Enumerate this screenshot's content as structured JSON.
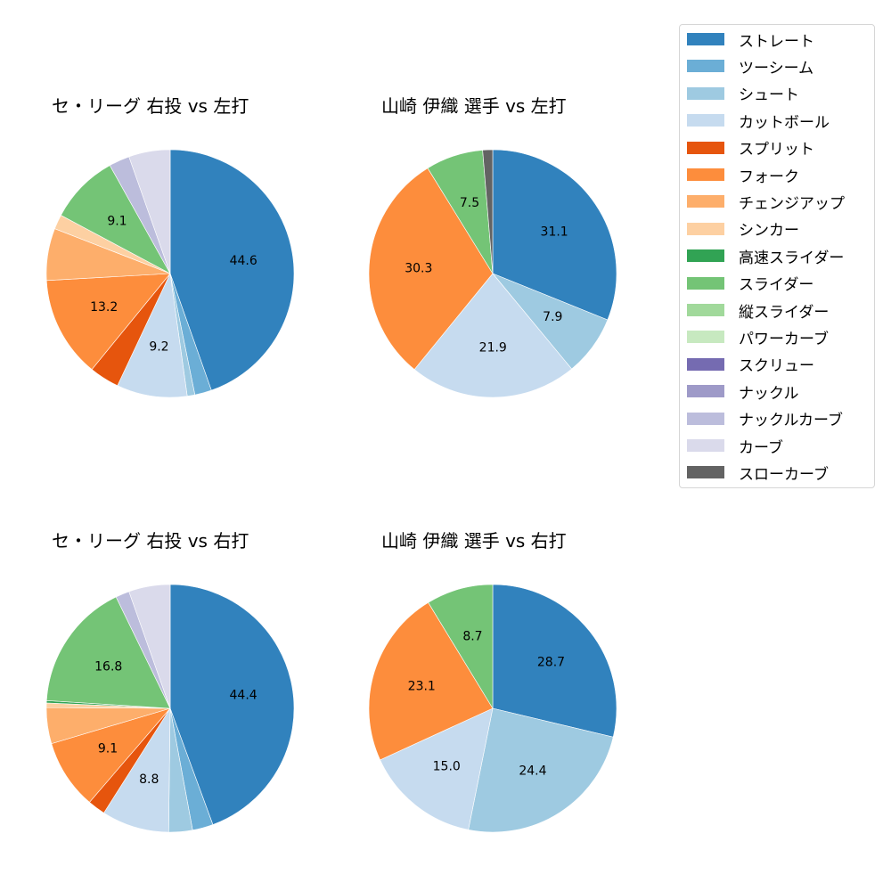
{
  "chart_data": [
    {
      "type": "pie",
      "title": "セ・リーグ 右投 vs 左打",
      "categories": [
        "ストレート",
        "ツーシーム",
        "シュート",
        "カットボール",
        "スプリット",
        "フォーク",
        "チェンジアップ",
        "シンカー",
        "スライダー",
        "ナックルカーブ",
        "カーブ"
      ],
      "values": [
        44.6,
        2.2,
        1.0,
        9.2,
        3.9,
        13.2,
        6.8,
        1.9,
        9.1,
        2.7,
        5.4
      ],
      "labels_shown": [
        "44.6",
        "",
        "",
        "9.2",
        "",
        "13.2",
        "",
        "",
        "9.1",
        "",
        ""
      ],
      "start_angle": 90,
      "direction": "clockwise"
    },
    {
      "type": "pie",
      "title": "山崎 伊織 選手 vs 左打",
      "categories": [
        "ストレート",
        "シュート",
        "カットボール",
        "フォーク",
        "スライダー",
        "スローカーブ"
      ],
      "values": [
        31.1,
        7.9,
        21.9,
        30.3,
        7.5,
        1.3
      ],
      "labels_shown": [
        "31.1",
        "7.9",
        "21.9",
        "30.3",
        "7.5",
        ""
      ],
      "start_angle": 90,
      "direction": "clockwise"
    },
    {
      "type": "pie",
      "title": "セ・リーグ 右投 vs 右打",
      "categories": [
        "ストレート",
        "ツーシーム",
        "シュート",
        "カットボール",
        "スプリット",
        "フォーク",
        "チェンジアップ",
        "シンカー",
        "高速スライダー",
        "スライダー",
        "ナックルカーブ",
        "カーブ"
      ],
      "values": [
        44.4,
        2.7,
        3.1,
        8.8,
        2.3,
        9.1,
        4.7,
        0.6,
        0.3,
        16.8,
        1.8,
        5.4
      ],
      "labels_shown": [
        "44.4",
        "",
        "",
        "8.8",
        "",
        "9.1",
        "",
        "",
        "",
        "16.8",
        "",
        ""
      ],
      "start_angle": 90,
      "direction": "clockwise"
    },
    {
      "type": "pie",
      "title": "山崎 伊織 選手 vs 右打",
      "categories": [
        "ストレート",
        "シュート",
        "カットボール",
        "フォーク",
        "スライダー"
      ],
      "values": [
        28.7,
        24.4,
        15.0,
        23.1,
        8.7
      ],
      "labels_shown": [
        "28.7",
        "24.4",
        "15.0",
        "23.1",
        "8.7"
      ],
      "start_angle": 90,
      "direction": "clockwise"
    }
  ],
  "legend": {
    "position": "upper right",
    "items": [
      {
        "label": "ストレート",
        "color": "#3182bd"
      },
      {
        "label": "ツーシーム",
        "color": "#6baed6"
      },
      {
        "label": "シュート",
        "color": "#9ecae1"
      },
      {
        "label": "カットボール",
        "color": "#c6dbef"
      },
      {
        "label": "スプリット",
        "color": "#e6550d"
      },
      {
        "label": "フォーク",
        "color": "#fd8d3c"
      },
      {
        "label": "チェンジアップ",
        "color": "#fdae6b"
      },
      {
        "label": "シンカー",
        "color": "#fdd0a2"
      },
      {
        "label": "高速スライダー",
        "color": "#31a354"
      },
      {
        "label": "スライダー",
        "color": "#74c476"
      },
      {
        "label": "縦スライダー",
        "color": "#a1d99b"
      },
      {
        "label": "パワーカーブ",
        "color": "#c7e9c0"
      },
      {
        "label": "スクリュー",
        "color": "#756bb1"
      },
      {
        "label": "ナックル",
        "color": "#9e9ac8"
      },
      {
        "label": "ナックルカーブ",
        "color": "#bcbddc"
      },
      {
        "label": "カーブ",
        "color": "#dadaeb"
      },
      {
        "label": "スローカーブ",
        "color": "#636363"
      }
    ]
  },
  "panels": [
    {
      "title": "セ・リーグ 右投 vs 左打"
    },
    {
      "title": "山崎 伊織 選手 vs 左打"
    },
    {
      "title": "セ・リーグ 右投 vs 右打"
    },
    {
      "title": "山崎 伊織 選手 vs 右打"
    }
  ]
}
